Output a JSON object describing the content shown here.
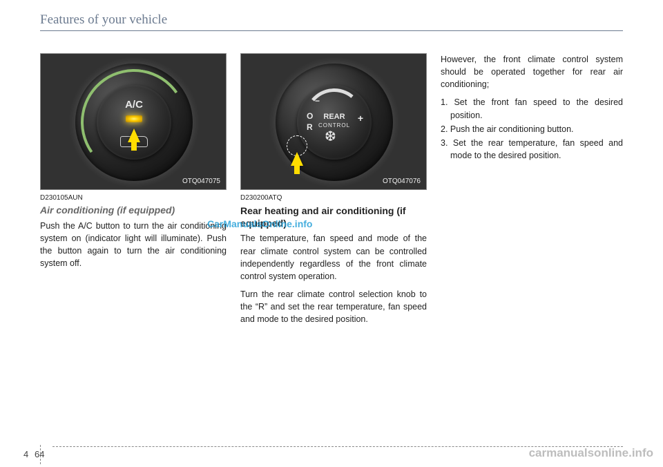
{
  "header": "Features of your vehicle",
  "col1": {
    "fig_code": "OTQ047075",
    "doc_code": "D230105AUN",
    "subhead": "Air conditioning (if equipped)",
    "body": "Push the A/C button to turn the air conditioning system on (indicator light will illuminate). Push the button again to turn the air conditioning system off.",
    "dial_label": "A/C"
  },
  "col2": {
    "fig_code": "OTQ047076",
    "doc_code": "D230200ATQ",
    "subhead": "Rear heating and air conditioning (if equipped)",
    "body1": "The temperature, fan speed and mode of the rear climate control system can be controlled independently regardless of the front climate control system operation.",
    "body2": "Turn the rear climate control selection knob to the “R” and set the rear temperature, fan speed and mode to the desired position.",
    "rear_label": "REAR",
    "control_label": "CONTROL",
    "o": "O",
    "r": "R",
    "minus": "−",
    "plus": "+",
    "fan": "❆"
  },
  "col3": {
    "body": "However, the front climate control system should be operated together for rear air conditioning;",
    "item1": "1. Set the front fan speed to the desired position.",
    "item2": "2. Push the air conditioning button.",
    "item3": "3. Set the rear temperature, fan speed and mode to the desired position."
  },
  "watermark_center": "CarManualsOnline.info",
  "watermark_corner": "carmanualsonline.info",
  "page_section": "4",
  "page_num": "64"
}
